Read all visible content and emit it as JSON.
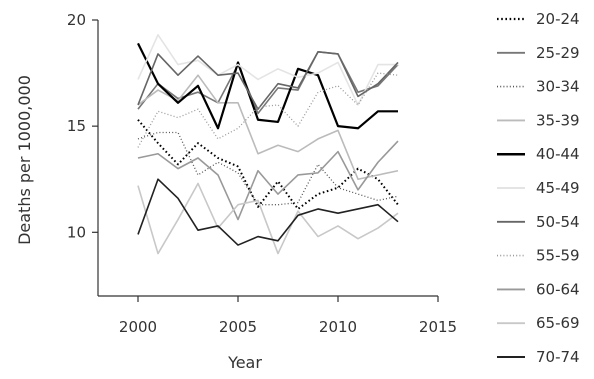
{
  "chart_data": {
    "type": "line",
    "title": "",
    "xlabel": "Year",
    "ylabel": "Deaths per 1000,000",
    "xlim": [
      1998,
      2015
    ],
    "ylim": [
      7,
      20
    ],
    "xticks": [
      "2000",
      "2005",
      "2010",
      "2015"
    ],
    "yticks": [
      "10",
      "15",
      "20"
    ],
    "grid": false,
    "legend_position": "right",
    "x": [
      2000,
      2001,
      2002,
      2003,
      2004,
      2005,
      2006,
      2007,
      2008,
      2009,
      2010,
      2011,
      2012,
      2013
    ],
    "series": [
      {
        "name": "20-24",
        "color": "#000000",
        "dash": "dotted-bold",
        "values": [
          15.3,
          14.2,
          13.2,
          14.2,
          13.5,
          13.1,
          11.2,
          12.4,
          11.1,
          11.8,
          12.1,
          13.0,
          12.5,
          11.3
        ]
      },
      {
        "name": "25-29",
        "color": "#777777",
        "dash": "solid",
        "values": [
          15.8,
          17.0,
          16.3,
          16.6,
          16.1,
          17.9,
          15.6,
          16.8,
          16.7,
          18.5,
          18.4,
          16.6,
          16.9,
          17.9
        ]
      },
      {
        "name": "30-34",
        "color": "#555555",
        "dash": "dotted",
        "values": [
          14.4,
          14.7,
          14.7,
          12.7,
          13.3,
          12.8,
          11.3,
          11.3,
          11.4,
          13.2,
          12.1,
          11.8,
          11.5,
          11.7
        ]
      },
      {
        "name": "35-39",
        "color": "#bbbbbb",
        "dash": "solid",
        "values": [
          16.0,
          16.7,
          16.2,
          17.4,
          16.1,
          16.1,
          13.7,
          14.1,
          13.8,
          14.4,
          14.8,
          12.5,
          12.7,
          12.9
        ]
      },
      {
        "name": "40-44",
        "color": "#000000",
        "dash": "solid-bold",
        "values": [
          18.9,
          17.0,
          16.1,
          16.9,
          14.9,
          18.0,
          15.3,
          15.2,
          17.7,
          17.4,
          15.0,
          14.9,
          15.7,
          15.7
        ]
      },
      {
        "name": "45-49",
        "color": "#e4e4e4",
        "dash": "solid",
        "values": [
          17.2,
          19.3,
          17.9,
          18.1,
          17.4,
          17.9,
          17.2,
          17.7,
          17.3,
          17.5,
          18.0,
          16.0,
          17.9,
          17.9
        ]
      },
      {
        "name": "50-54",
        "color": "#666666",
        "dash": "solid",
        "values": [
          16.0,
          18.4,
          17.4,
          18.3,
          17.4,
          17.5,
          15.8,
          17.0,
          16.8,
          18.5,
          18.4,
          16.4,
          17.0,
          18.0
        ]
      },
      {
        "name": "55-59",
        "color": "#999999",
        "dash": "dotted",
        "values": [
          14.0,
          15.7,
          15.4,
          15.8,
          14.4,
          14.9,
          15.9,
          16.0,
          15.0,
          16.6,
          16.9,
          16.0,
          17.5,
          17.4
        ]
      },
      {
        "name": "60-64",
        "color": "#999999",
        "dash": "solid",
        "values": [
          13.5,
          13.7,
          13.0,
          13.5,
          12.7,
          10.6,
          12.9,
          11.8,
          12.7,
          12.8,
          13.8,
          12.0,
          13.3,
          14.3
        ]
      },
      {
        "name": "65-69",
        "color": "#c8c8c8",
        "dash": "solid",
        "values": [
          12.2,
          9.0,
          10.6,
          12.3,
          10.2,
          11.3,
          11.5,
          9.0,
          11.0,
          9.8,
          10.3,
          9.7,
          10.2,
          10.9
        ]
      },
      {
        "name": "70-74",
        "color": "#222222",
        "dash": "solid",
        "values": [
          9.9,
          12.5,
          11.6,
          10.1,
          10.3,
          9.4,
          9.8,
          9.6,
          10.8,
          11.1,
          10.9,
          11.1,
          11.3,
          10.5
        ]
      }
    ]
  }
}
